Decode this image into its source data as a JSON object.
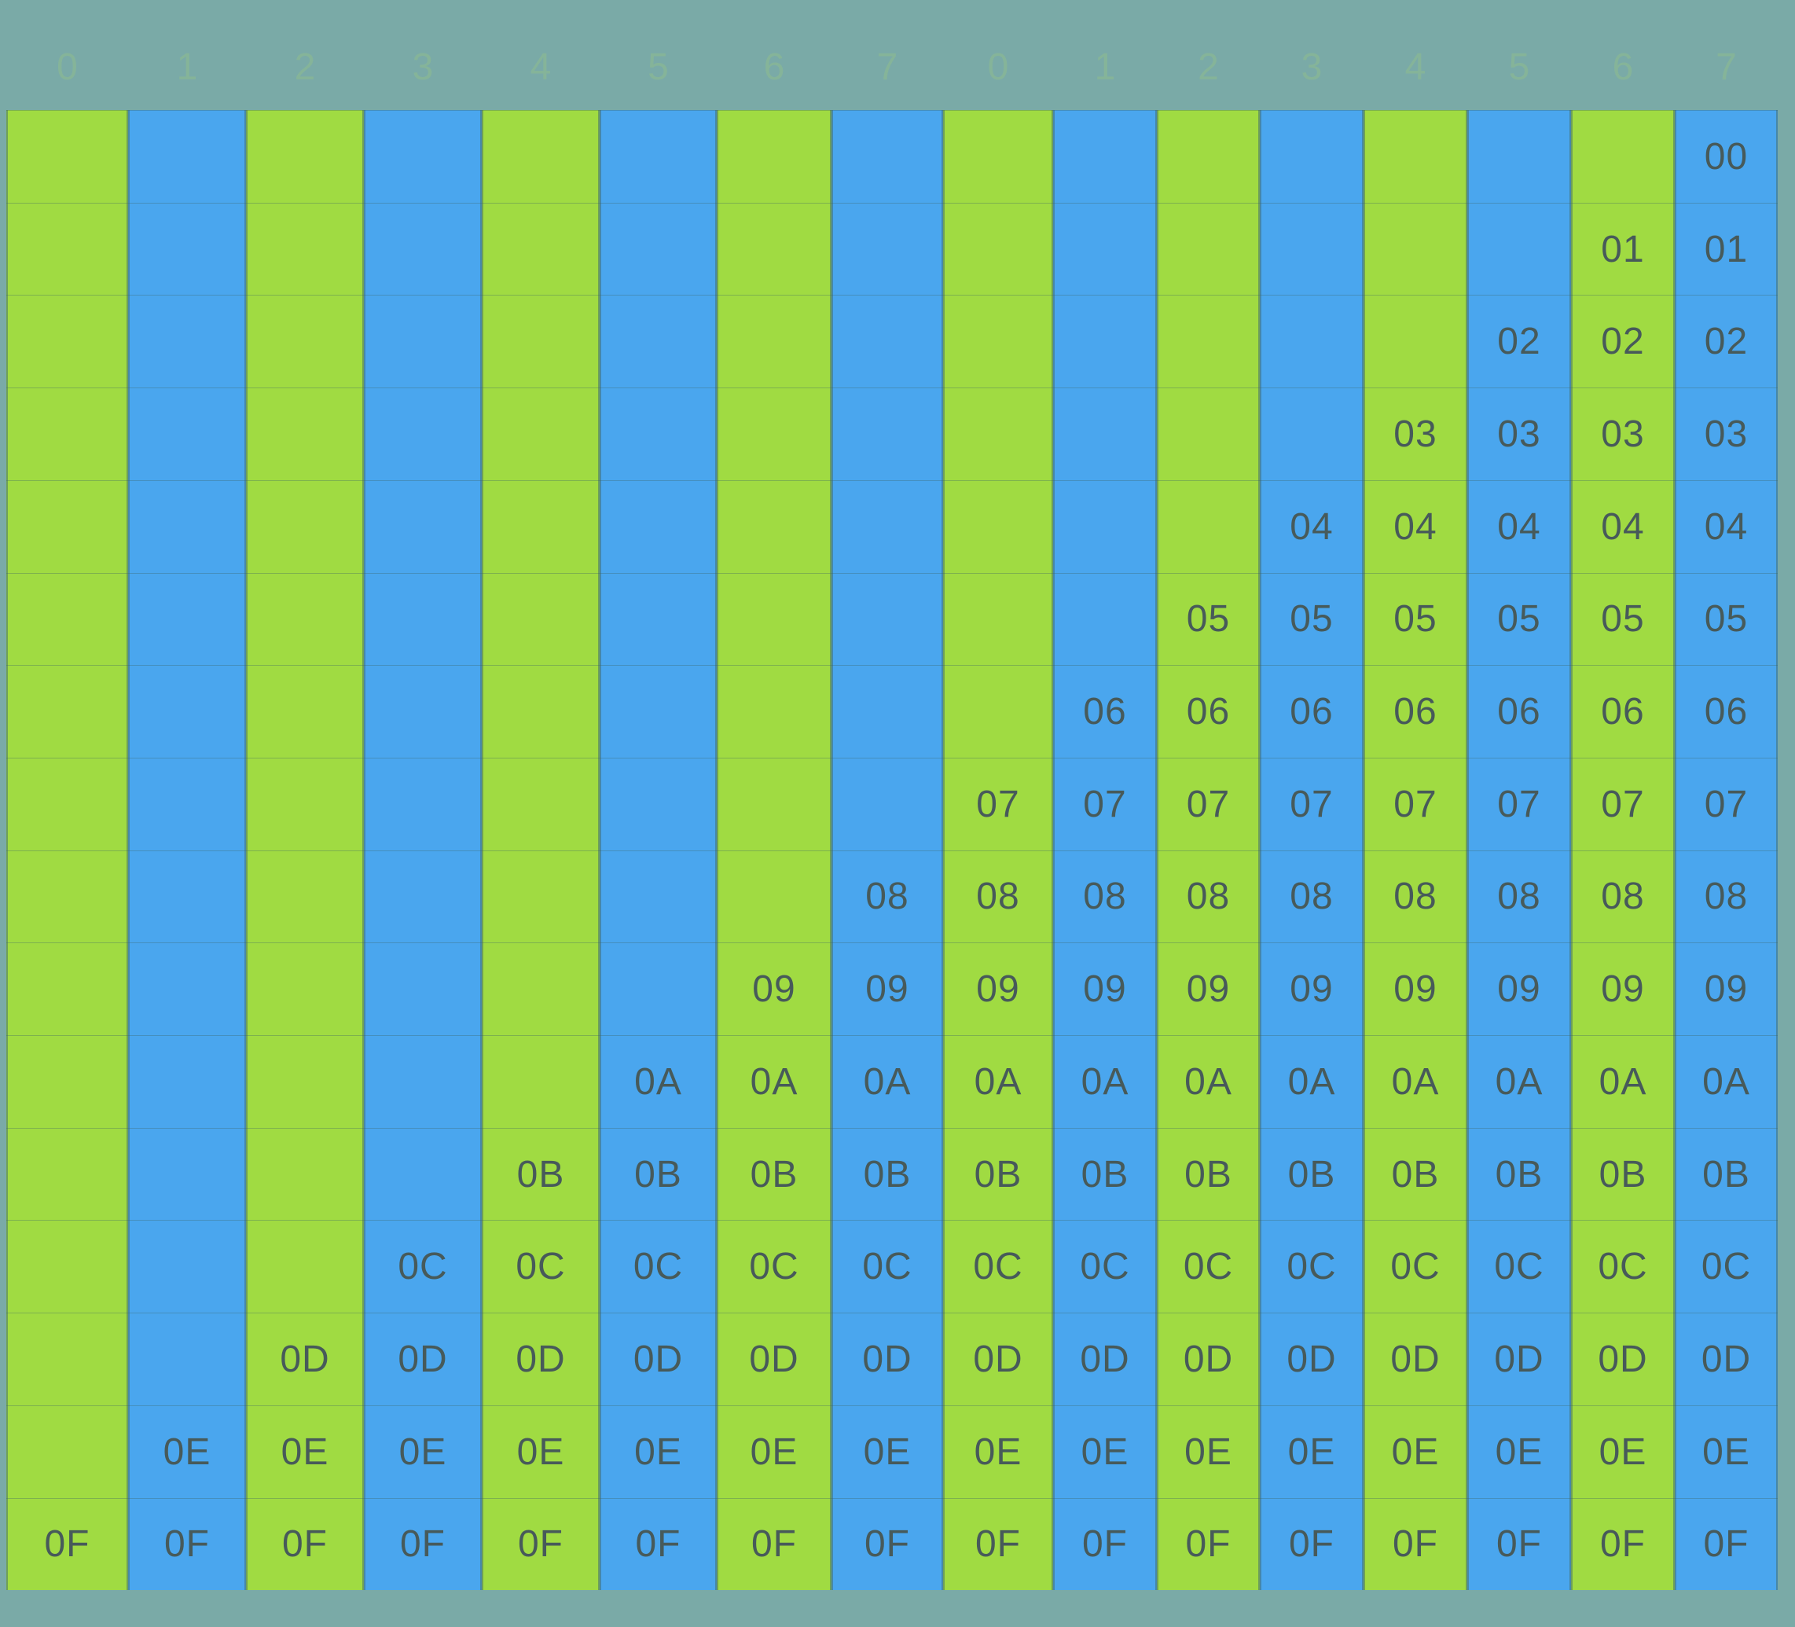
{
  "column_headers": [
    "0",
    "1",
    "2",
    "3",
    "4",
    "5",
    "6",
    "7",
    "0",
    "1",
    "2",
    "3",
    "4",
    "5",
    "6",
    "7"
  ],
  "column_colors": [
    "#a0db42",
    "#4aa6ee",
    "#a0db42",
    "#4aa6ee",
    "#a0db42",
    "#4aa6ee",
    "#a0db42",
    "#4aa6ee",
    "#a0db42",
    "#4aa6ee",
    "#a0db42",
    "#4aa6ee",
    "#a0db42",
    "#4aa6ee",
    "#a0db42",
    "#4aa6ee"
  ],
  "rows": [
    [
      "",
      "",
      "",
      "",
      "",
      "",
      "",
      "",
      "",
      "",
      "",
      "",
      "",
      "",
      "",
      "00"
    ],
    [
      "",
      "",
      "",
      "",
      "",
      "",
      "",
      "",
      "",
      "",
      "",
      "",
      "",
      "",
      "01",
      "01"
    ],
    [
      "",
      "",
      "",
      "",
      "",
      "",
      "",
      "",
      "",
      "",
      "",
      "",
      "",
      "02",
      "02",
      "02"
    ],
    [
      "",
      "",
      "",
      "",
      "",
      "",
      "",
      "",
      "",
      "",
      "",
      "",
      "03",
      "03",
      "03",
      "03"
    ],
    [
      "",
      "",
      "",
      "",
      "",
      "",
      "",
      "",
      "",
      "",
      "",
      "04",
      "04",
      "04",
      "04",
      "04"
    ],
    [
      "",
      "",
      "",
      "",
      "",
      "",
      "",
      "",
      "",
      "",
      "05",
      "05",
      "05",
      "05",
      "05",
      "05"
    ],
    [
      "",
      "",
      "",
      "",
      "",
      "",
      "",
      "",
      "",
      "06",
      "06",
      "06",
      "06",
      "06",
      "06",
      "06"
    ],
    [
      "",
      "",
      "",
      "",
      "",
      "",
      "",
      "",
      "07",
      "07",
      "07",
      "07",
      "07",
      "07",
      "07",
      "07"
    ],
    [
      "",
      "",
      "",
      "",
      "",
      "",
      "",
      "08",
      "08",
      "08",
      "08",
      "08",
      "08",
      "08",
      "08",
      "08"
    ],
    [
      "",
      "",
      "",
      "",
      "",
      "",
      "09",
      "09",
      "09",
      "09",
      "09",
      "09",
      "09",
      "09",
      "09",
      "09"
    ],
    [
      "",
      "",
      "",
      "",
      "",
      "0A",
      "0A",
      "0A",
      "0A",
      "0A",
      "0A",
      "0A",
      "0A",
      "0A",
      "0A",
      "0A"
    ],
    [
      "",
      "",
      "",
      "",
      "0B",
      "0B",
      "0B",
      "0B",
      "0B",
      "0B",
      "0B",
      "0B",
      "0B",
      "0B",
      "0B",
      "0B"
    ],
    [
      "",
      "",
      "",
      "0C",
      "0C",
      "0C",
      "0C",
      "0C",
      "0C",
      "0C",
      "0C",
      "0C",
      "0C",
      "0C",
      "0C",
      "0C"
    ],
    [
      "",
      "",
      "0D",
      "0D",
      "0D",
      "0D",
      "0D",
      "0D",
      "0D",
      "0D",
      "0D",
      "0D",
      "0D",
      "0D",
      "0D",
      "0D"
    ],
    [
      "",
      "0E",
      "0E",
      "0E",
      "0E",
      "0E",
      "0E",
      "0E",
      "0E",
      "0E",
      "0E",
      "0E",
      "0E",
      "0E",
      "0E",
      "0E"
    ],
    [
      "0F",
      "0F",
      "0F",
      "0F",
      "0F",
      "0F",
      "0F",
      "0F",
      "0F",
      "0F",
      "0F",
      "0F",
      "0F",
      "0F",
      "0F",
      "0F"
    ]
  ]
}
